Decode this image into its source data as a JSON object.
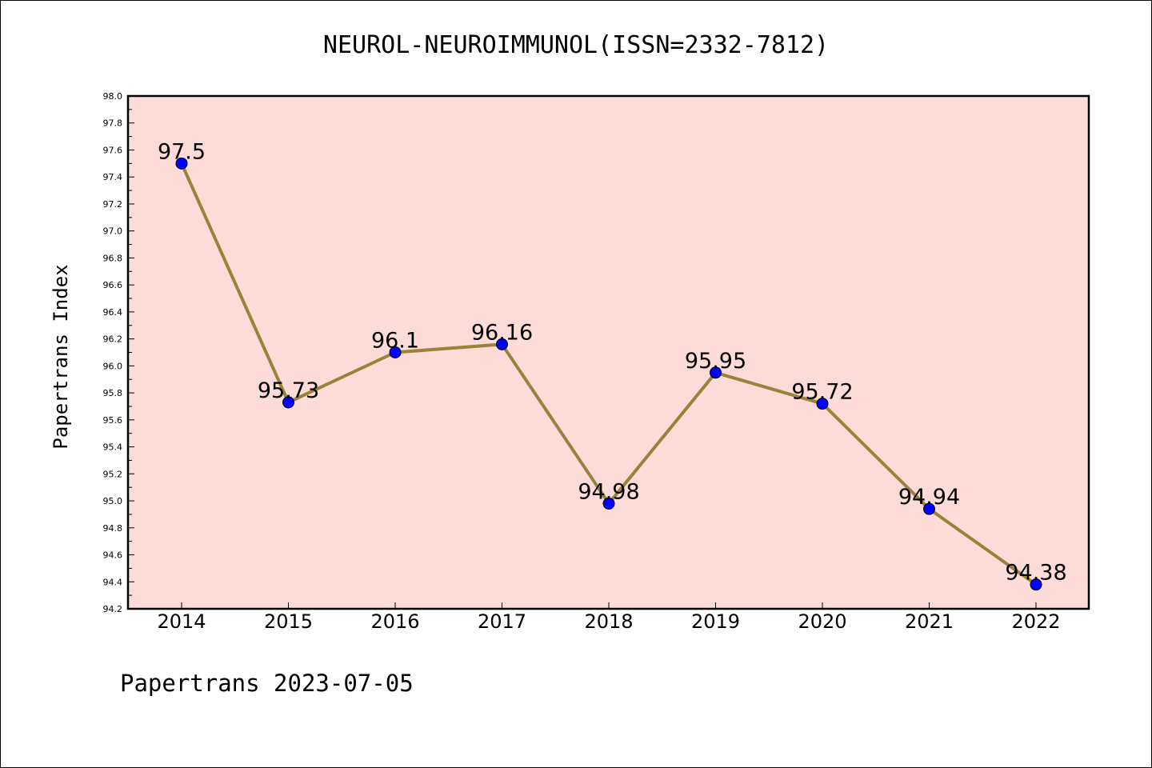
{
  "chart_data": {
    "type": "line",
    "title": "NEUROL-NEUROIMMUNOL(ISSN=2332-7812)",
    "ylabel": "Papertrans Index",
    "xlabel": "",
    "categories": [
      "2014",
      "2015",
      "2016",
      "2017",
      "2018",
      "2019",
      "2020",
      "2021",
      "2022"
    ],
    "values": [
      97.5,
      95.73,
      96.1,
      96.16,
      94.98,
      95.95,
      95.72,
      94.94,
      94.38
    ],
    "data_labels": [
      "97.5",
      "95.73",
      "96.1",
      "96.16",
      "94.98",
      "95.95",
      "95.72",
      "94.94",
      "94.38"
    ],
    "ylim": [
      94.2,
      98.0
    ],
    "yticks": [
      "94.2",
      "94.4",
      "94.6",
      "94.8",
      "95.0",
      "95.2",
      "95.4",
      "95.6",
      "95.8",
      "96.0",
      "96.2",
      "96.4",
      "96.6",
      "96.8",
      "97.0",
      "97.2",
      "97.4",
      "97.6",
      "97.8",
      "98.0"
    ],
    "grid": false,
    "colors": {
      "plot_background": "#fddbd9",
      "line": "#9a8338",
      "marker": "#0000ff"
    }
  },
  "footer": "Papertrans 2023-07-05"
}
